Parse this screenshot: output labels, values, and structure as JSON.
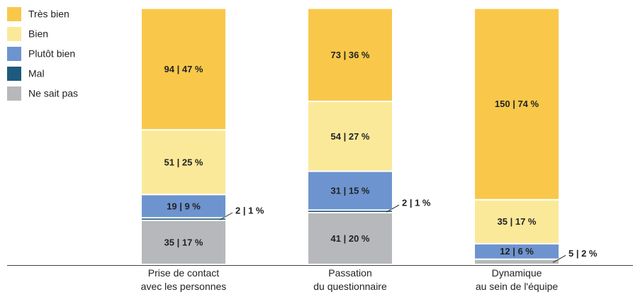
{
  "chart_data": {
    "type": "stacked_bar",
    "categories": [
      "Prise de contact\navec les personnes",
      "Passation\ndu questionnaire",
      "Dynamique\nau sein de l'équipe"
    ],
    "ylim": [
      0,
      100
    ],
    "legend": "top-left",
    "series": [
      {
        "name": "Très bien",
        "color": "#f9c84a",
        "values": [
          47,
          36,
          74
        ],
        "value_labels": [
          "94 | 47 %",
          "73 | 36 %",
          "150 | 74 %"
        ]
      },
      {
        "name": "Bien",
        "color": "#fbe99a",
        "values": [
          25,
          27,
          17
        ],
        "value_labels": [
          "51 | 25 %",
          "54 | 27 %",
          "35 | 17 %"
        ]
      },
      {
        "name": "Plutôt bien",
        "color": "#6d94cf",
        "values": [
          9,
          15,
          6
        ],
        "value_labels": [
          "19 | 9 %",
          "31 | 15 %",
          "12 | 6 %"
        ]
      },
      {
        "name": "Mal",
        "color": "#1e5a7e",
        "values": [
          1,
          1,
          null
        ],
        "value_labels": [
          "2 | 1 %",
          "2 | 1 %",
          null
        ]
      },
      {
        "name": "Ne sait pas",
        "color": "#b7b8bb",
        "values": [
          17,
          20,
          2
        ],
        "value_labels": [
          "35 | 17 %",
          "41 | 20 %",
          "5 | 2 %"
        ]
      }
    ]
  }
}
